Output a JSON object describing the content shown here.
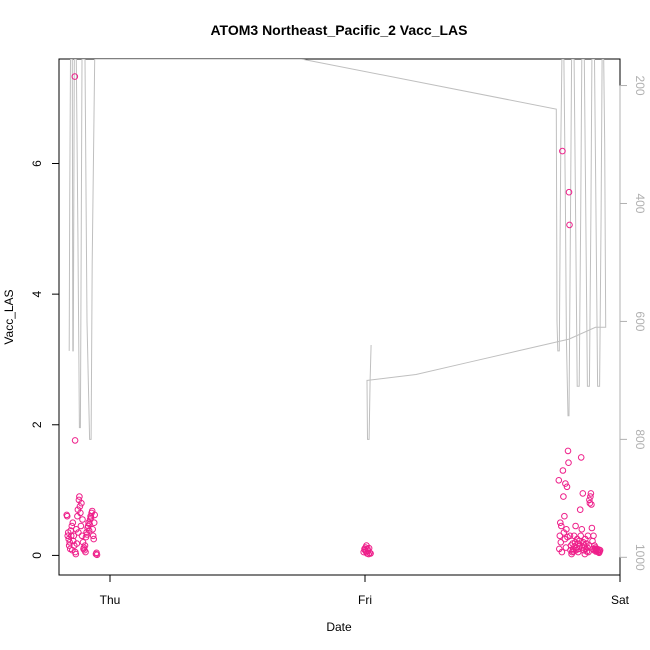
{
  "chart_data": {
    "type": "scatter",
    "title": "ATOM3 Northeast_Pacific_2 Vacc_LAS",
    "xlabel": "Date",
    "ylabel": "Vacc_LAS",
    "x_ticks": [
      "Thu",
      "Fri",
      "Sat"
    ],
    "y_ticks": [
      0,
      2,
      4,
      6
    ],
    "y_right_ticks": [
      200,
      400,
      600,
      800,
      1000
    ],
    "x_range_days": [
      -0.2,
      2.0
    ],
    "ylim": [
      -0.3,
      7.6
    ],
    "y_right_lim": [
      1030,
      155
    ],
    "colors": {
      "points": "#ee1f8a",
      "line": "#bfbfbf",
      "axis": "#000000",
      "right_axis": "#b0b0b0"
    },
    "series": [
      {
        "kind": "points",
        "axis": "left",
        "points": [
          [
            -0.17,
            0.62
          ],
          [
            -0.168,
            0.6
          ],
          [
            -0.166,
            0.3
          ],
          [
            -0.164,
            0.35
          ],
          [
            -0.162,
            0.25
          ],
          [
            -0.16,
            0.15
          ],
          [
            -0.158,
            0.2
          ],
          [
            -0.156,
            0.1
          ],
          [
            -0.154,
            0.38
          ],
          [
            -0.152,
            0.3
          ],
          [
            -0.15,
            0.45
          ],
          [
            -0.148,
            0.08
          ],
          [
            -0.146,
            0.5
          ],
          [
            -0.144,
            0.22
          ],
          [
            -0.142,
            0.3
          ],
          [
            -0.14,
            0.15
          ],
          [
            -0.138,
            7.33
          ],
          [
            -0.137,
            1.76
          ],
          [
            -0.136,
            0.05
          ],
          [
            -0.134,
            0.02
          ],
          [
            -0.132,
            0.4
          ],
          [
            -0.13,
            0.18
          ],
          [
            -0.128,
            0.6
          ],
          [
            -0.126,
            0.7
          ],
          [
            -0.124,
            0.35
          ],
          [
            -0.122,
            0.85
          ],
          [
            -0.12,
            0.9
          ],
          [
            -0.118,
            0.75
          ],
          [
            -0.116,
            0.65
          ],
          [
            -0.114,
            0.45
          ],
          [
            -0.112,
            0.8
          ],
          [
            -0.11,
            0.3
          ],
          [
            -0.108,
            0.55
          ],
          [
            -0.106,
            0.2
          ],
          [
            -0.104,
            0.1
          ],
          [
            -0.102,
            0.12
          ],
          [
            -0.1,
            0.08
          ],
          [
            -0.098,
            0.15
          ],
          [
            -0.096,
            0.05
          ],
          [
            -0.094,
            0.28
          ],
          [
            -0.092,
            0.35
          ],
          [
            -0.09,
            0.32
          ],
          [
            -0.088,
            0.42
          ],
          [
            -0.086,
            0.45
          ],
          [
            -0.084,
            0.5
          ],
          [
            -0.082,
            0.38
          ],
          [
            -0.08,
            0.48
          ],
          [
            -0.078,
            0.55
          ],
          [
            -0.076,
            0.6
          ],
          [
            -0.074,
            0.58
          ],
          [
            -0.072,
            0.65
          ],
          [
            -0.07,
            0.68
          ],
          [
            -0.068,
            0.4
          ],
          [
            -0.066,
            0.3
          ],
          [
            -0.064,
            0.25
          ],
          [
            -0.062,
            0.5
          ],
          [
            -0.06,
            0.62
          ],
          [
            -0.055,
            0.02
          ],
          [
            -0.053,
            0.04
          ],
          [
            -0.051,
            0.01
          ],
          [
            0.995,
            0.05
          ],
          [
            0.998,
            0.1
          ],
          [
            1.0,
            0.08
          ],
          [
            1.002,
            0.12
          ],
          [
            1.004,
            0.06
          ],
          [
            1.006,
            0.15
          ],
          [
            1.008,
            0.03
          ],
          [
            1.01,
            0.1
          ],
          [
            1.012,
            0.07
          ],
          [
            1.014,
            0.02
          ],
          [
            1.016,
            0.11
          ],
          [
            1.018,
            0.04
          ],
          [
            1.022,
            0.03
          ],
          [
            1.76,
            1.15
          ],
          [
            1.762,
            0.1
          ],
          [
            1.764,
            0.3
          ],
          [
            1.766,
            0.5
          ],
          [
            1.768,
            0.2
          ],
          [
            1.77,
            0.45
          ],
          [
            1.772,
            0.05
          ],
          [
            1.774,
            6.19
          ],
          [
            1.776,
            1.3
          ],
          [
            1.778,
            0.9
          ],
          [
            1.78,
            0.35
          ],
          [
            1.782,
            0.6
          ],
          [
            1.784,
            0.25
          ],
          [
            1.786,
            1.1
          ],
          [
            1.788,
            0.12
          ],
          [
            1.79,
            0.4
          ],
          [
            1.792,
            1.05
          ],
          [
            1.794,
            0.28
          ],
          [
            1.796,
            1.6
          ],
          [
            1.798,
            1.42
          ],
          [
            1.8,
            5.56
          ],
          [
            1.802,
            5.06
          ],
          [
            1.804,
            0.3
          ],
          [
            1.806,
            0.08
          ],
          [
            1.808,
            0.15
          ],
          [
            1.81,
            0.02
          ],
          [
            1.812,
            0.05
          ],
          [
            1.814,
            0.18
          ],
          [
            1.816,
            0.1
          ],
          [
            1.818,
            0.06
          ],
          [
            1.82,
            0.3
          ],
          [
            1.822,
            0.14
          ],
          [
            1.824,
            0.2
          ],
          [
            1.826,
            0.45
          ],
          [
            1.828,
            0.08
          ],
          [
            1.83,
            0.12
          ],
          [
            1.832,
            0.25
          ],
          [
            1.834,
            0.18
          ],
          [
            1.836,
            0.05
          ],
          [
            1.838,
            0.1
          ],
          [
            1.84,
            0.22
          ],
          [
            1.842,
            0.15
          ],
          [
            1.844,
            0.7
          ],
          [
            1.846,
            0.3
          ],
          [
            1.848,
            1.5
          ],
          [
            1.85,
            0.4
          ],
          [
            1.852,
            0.12
          ],
          [
            1.854,
            0.95
          ],
          [
            1.856,
            0.2
          ],
          [
            1.858,
            0.08
          ],
          [
            1.86,
            0.15
          ],
          [
            1.862,
            0.02
          ],
          [
            1.864,
            0.25
          ],
          [
            1.866,
            0.1
          ],
          [
            1.868,
            0.18
          ],
          [
            1.87,
            0.06
          ],
          [
            1.872,
            0.12
          ],
          [
            1.874,
            0.3
          ],
          [
            1.876,
            0.05
          ],
          [
            1.878,
            0.15
          ],
          [
            1.88,
            0.85
          ],
          [
            1.882,
            0.8
          ],
          [
            1.884,
            0.9
          ],
          [
            1.886,
            0.95
          ],
          [
            1.888,
            0.78
          ],
          [
            1.89,
            0.42
          ],
          [
            1.892,
            0.22
          ],
          [
            1.894,
            0.1
          ],
          [
            1.896,
            0.3
          ],
          [
            1.898,
            0.08
          ],
          [
            1.9,
            0.15
          ],
          [
            1.902,
            0.1
          ],
          [
            1.904,
            0.12
          ],
          [
            1.906,
            0.06
          ],
          [
            1.908,
            0.08
          ],
          [
            1.91,
            0.1
          ],
          [
            1.912,
            0.07
          ],
          [
            1.914,
            0.05
          ],
          [
            1.916,
            0.09
          ],
          [
            1.918,
            0.04
          ],
          [
            1.92,
            0.06
          ],
          [
            1.922,
            0.08
          ]
        ]
      },
      {
        "kind": "line",
        "axis": "right",
        "points": [
          [
            -0.16,
            650
          ],
          [
            -0.158,
            400
          ],
          [
            -0.155,
            155
          ],
          [
            -0.148,
            155
          ],
          [
            -0.146,
            650
          ],
          [
            -0.144,
            650
          ],
          [
            -0.14,
            155
          ],
          [
            -0.132,
            155
          ],
          [
            -0.126,
            450
          ],
          [
            -0.12,
            780
          ],
          [
            -0.116,
            780
          ],
          [
            -0.11,
            155
          ],
          [
            -0.098,
            155
          ],
          [
            -0.09,
            600
          ],
          [
            -0.08,
            800
          ],
          [
            -0.074,
            800
          ],
          [
            -0.07,
            500
          ],
          [
            -0.06,
            155
          ],
          [
            -0.04,
            155
          ],
          [
            0.75,
            155
          ],
          [
            1.75,
            240
          ],
          [
            1.753,
            600
          ],
          [
            1.756,
            650
          ],
          [
            1.762,
            650
          ],
          [
            1.768,
            300
          ],
          [
            1.772,
            155
          ],
          [
            1.78,
            155
          ],
          [
            1.786,
            400
          ],
          [
            1.79,
            630
          ],
          [
            1.796,
            760
          ],
          [
            1.8,
            760
          ],
          [
            1.806,
            420
          ],
          [
            1.81,
            155
          ],
          [
            1.82,
            155
          ],
          [
            1.826,
            420
          ],
          [
            1.832,
            710
          ],
          [
            1.84,
            710
          ],
          [
            1.846,
            420
          ],
          [
            1.85,
            155
          ],
          [
            1.86,
            155
          ],
          [
            1.866,
            420
          ],
          [
            1.872,
            710
          ],
          [
            1.88,
            710
          ],
          [
            1.886,
            420
          ],
          [
            1.89,
            155
          ],
          [
            1.9,
            155
          ],
          [
            1.906,
            420
          ],
          [
            1.912,
            710
          ],
          [
            1.92,
            710
          ],
          [
            1.926,
            420
          ],
          [
            1.93,
            155
          ],
          [
            1.936,
            155
          ],
          [
            1.94,
            300
          ],
          [
            1.944,
            610
          ],
          [
            1.904,
            610
          ],
          [
            1.8,
            630
          ],
          [
            1.6,
            650
          ],
          [
            1.4,
            670
          ],
          [
            1.2,
            690
          ],
          [
            1.01,
            700
          ],
          [
            1.008,
            700
          ],
          [
            1.01,
            800
          ],
          [
            1.016,
            800
          ],
          [
            1.02,
            700
          ],
          [
            1.024,
            640
          ]
        ]
      }
    ]
  }
}
